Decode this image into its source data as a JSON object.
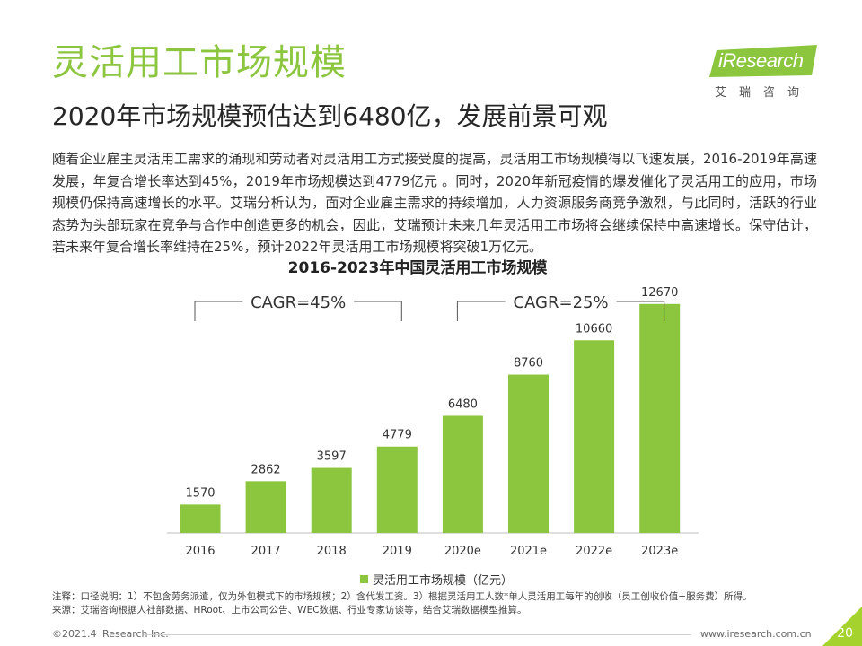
{
  "header": {
    "title": "灵活用工市场规模",
    "subtitle": "2020年市场规模预估达到6480亿，发展前景可观"
  },
  "logo": {
    "word": "iResearch",
    "cn": "艾瑞咨询"
  },
  "body": {
    "paragraph": "随着企业雇主灵活用工需求的涌现和劳动者对灵活用工方式接受度的提高，灵活用工市场规模得以飞速发展，2016-2019年高速发展，年复合增长率达到45%，2019年市场规模达到4779亿元 。同时，2020年新冠疫情的爆发催化了灵活用工的应用，市场规模仍保持高速增长的水平。艾瑞分析认为，面对企业雇主需求的持续增加，人力资源服务商竞争激烈，与此同时，活跃的行业态势为头部玩家在竞争与合作中创造更多的机会，因此，艾瑞预计未来几年灵活用工市场将会继续保持中高速增长。保守估计，若未来年复合增长率维持在25%，预计2022年灵活用工市场规模将突破1万亿元。"
  },
  "chart_data": {
    "type": "bar",
    "title": "2016-2023年中国灵活用工市场规模",
    "categories": [
      "2016",
      "2017",
      "2018",
      "2019",
      "2020e",
      "2021e",
      "2022e",
      "2023e"
    ],
    "series": [
      {
        "name": "灵活用工市场规模（亿元）",
        "values": [
          1570,
          2862,
          3597,
          4779,
          6480,
          8760,
          10660,
          12670
        ]
      }
    ],
    "ylim": [
      0,
      14000
    ],
    "grid": false,
    "legend": "bottom-center",
    "annotations": [
      {
        "text": "CAGR=45%",
        "from": "2016",
        "to": "2019"
      },
      {
        "text": "CAGR=25%",
        "from": "2020e",
        "to": "2023e"
      }
    ],
    "bar_color": "#8cc63f"
  },
  "notes": {
    "line1": "注释：口径说明：1）不包含劳务派遣，仅为外包模式下的市场规模；2）含代发工资。3）根据灵活用工人数*单人灵活用工每年的创收（员工创收价值+服务费）所得。",
    "line2": "来源：艾瑞咨询根据人社部数据、HRoot、上市公司公告、WEC数据、行业专家访谈等，结合艾瑞数据模型推算。"
  },
  "footer": {
    "copyright": "©2021.4 iResearch Inc.",
    "url": "www.iresearch.com.cn",
    "page": "20"
  },
  "colors": {
    "accent": "#8cc63f",
    "corner": "#a6d22e"
  }
}
